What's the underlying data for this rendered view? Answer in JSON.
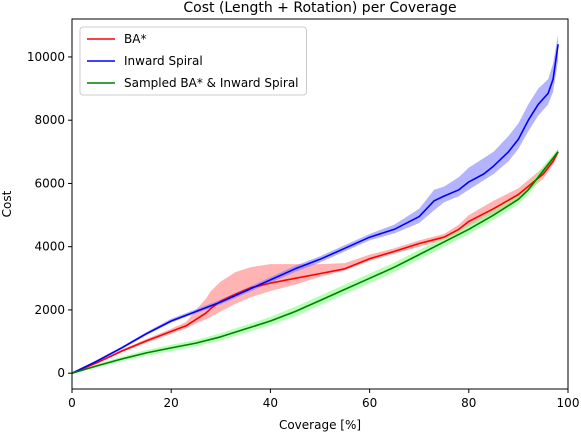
{
  "chart_data": {
    "type": "line",
    "title": "Cost (Length + Rotation) per Coverage",
    "xlabel": "Coverage [%]",
    "ylabel": "Cost",
    "xlim": [
      0,
      100
    ],
    "ylim": [
      -500,
      11200
    ],
    "xticks": [
      0,
      20,
      40,
      60,
      80,
      100
    ],
    "yticks": [
      0,
      2000,
      4000,
      6000,
      8000,
      10000
    ],
    "grid": false,
    "legend_position": "top-left",
    "series": [
      {
        "name": "BA*",
        "color": "#ff0000",
        "band_color": "#ff8080",
        "points": [
          [
            0,
            0
          ],
          [
            5,
            330
          ],
          [
            10,
            700
          ],
          [
            15,
            1020
          ],
          [
            20,
            1320
          ],
          [
            23,
            1500
          ],
          [
            25,
            1700
          ],
          [
            27,
            1900
          ],
          [
            28,
            2050
          ],
          [
            30,
            2280
          ],
          [
            33,
            2500
          ],
          [
            36,
            2700
          ],
          [
            40,
            2850
          ],
          [
            45,
            3000
          ],
          [
            50,
            3150
          ],
          [
            55,
            3300
          ],
          [
            60,
            3620
          ],
          [
            65,
            3850
          ],
          [
            70,
            4100
          ],
          [
            75,
            4300
          ],
          [
            78,
            4550
          ],
          [
            80,
            4800
          ],
          [
            85,
            5200
          ],
          [
            90,
            5650
          ],
          [
            95,
            6300
          ],
          [
            97,
            6700
          ],
          [
            98,
            7000
          ]
        ],
        "band": [
          [
            0,
            0,
            0
          ],
          [
            5,
            300,
            360
          ],
          [
            10,
            660,
            740
          ],
          [
            15,
            960,
            1080
          ],
          [
            20,
            1250,
            1400
          ],
          [
            23,
            1420,
            1620
          ],
          [
            25,
            1580,
            2000
          ],
          [
            27,
            1700,
            2350
          ],
          [
            28,
            1780,
            2600
          ],
          [
            30,
            1950,
            2900
          ],
          [
            33,
            2200,
            3200
          ],
          [
            36,
            2400,
            3350
          ],
          [
            40,
            2600,
            3450
          ],
          [
            45,
            2800,
            3450
          ],
          [
            50,
            3050,
            3450
          ],
          [
            55,
            3250,
            3480
          ],
          [
            60,
            3550,
            3750
          ],
          [
            65,
            3780,
            3950
          ],
          [
            70,
            4000,
            4200
          ],
          [
            75,
            4220,
            4400
          ],
          [
            78,
            4450,
            4700
          ],
          [
            80,
            4650,
            5000
          ],
          [
            85,
            5050,
            5450
          ],
          [
            90,
            5500,
            5850
          ],
          [
            95,
            6150,
            6500
          ],
          [
            97,
            6600,
            6850
          ],
          [
            98,
            6900,
            7100
          ]
        ]
      },
      {
        "name": "Inward Spiral",
        "color": "#0000ff",
        "band_color": "#8080ff",
        "points": [
          [
            0,
            0
          ],
          [
            5,
            380
          ],
          [
            10,
            800
          ],
          [
            15,
            1250
          ],
          [
            20,
            1650
          ],
          [
            25,
            1950
          ],
          [
            30,
            2250
          ],
          [
            35,
            2600
          ],
          [
            40,
            2950
          ],
          [
            45,
            3300
          ],
          [
            50,
            3600
          ],
          [
            55,
            3950
          ],
          [
            60,
            4300
          ],
          [
            65,
            4550
          ],
          [
            70,
            4950
          ],
          [
            73,
            5450
          ],
          [
            75,
            5600
          ],
          [
            78,
            5800
          ],
          [
            80,
            6050
          ],
          [
            83,
            6300
          ],
          [
            85,
            6550
          ],
          [
            88,
            7000
          ],
          [
            90,
            7400
          ],
          [
            92,
            8000
          ],
          [
            94,
            8500
          ],
          [
            96,
            8850
          ],
          [
            97,
            9300
          ],
          [
            98,
            10400
          ]
        ],
        "band": [
          [
            0,
            0,
            0
          ],
          [
            5,
            350,
            420
          ],
          [
            10,
            760,
            840
          ],
          [
            15,
            1200,
            1300
          ],
          [
            20,
            1600,
            1720
          ],
          [
            25,
            1900,
            2020
          ],
          [
            30,
            2180,
            2330
          ],
          [
            35,
            2520,
            2680
          ],
          [
            40,
            2860,
            3040
          ],
          [
            45,
            3200,
            3400
          ],
          [
            50,
            3500,
            3700
          ],
          [
            55,
            3850,
            4050
          ],
          [
            60,
            4200,
            4400
          ],
          [
            65,
            4420,
            4700
          ],
          [
            70,
            4750,
            5200
          ],
          [
            73,
            5150,
            5800
          ],
          [
            75,
            5400,
            5900
          ],
          [
            78,
            5600,
            6200
          ],
          [
            80,
            5800,
            6500
          ],
          [
            83,
            6100,
            6800
          ],
          [
            85,
            6300,
            7000
          ],
          [
            88,
            6700,
            7500
          ],
          [
            90,
            7100,
            7900
          ],
          [
            92,
            7650,
            8500
          ],
          [
            94,
            8150,
            9000
          ],
          [
            96,
            8500,
            9300
          ],
          [
            97,
            8900,
            9800
          ],
          [
            98,
            9900,
            10700
          ]
        ]
      },
      {
        "name": "Sampled BA* & Inward Spiral",
        "color": "#008000",
        "band_color": "#80ff80",
        "points": [
          [
            0,
            0
          ],
          [
            5,
            230
          ],
          [
            10,
            450
          ],
          [
            15,
            640
          ],
          [
            20,
            800
          ],
          [
            25,
            950
          ],
          [
            30,
            1150
          ],
          [
            35,
            1400
          ],
          [
            40,
            1650
          ],
          [
            45,
            1950
          ],
          [
            50,
            2300
          ],
          [
            55,
            2650
          ],
          [
            60,
            3000
          ],
          [
            65,
            3350
          ],
          [
            70,
            3750
          ],
          [
            75,
            4150
          ],
          [
            80,
            4550
          ],
          [
            85,
            5000
          ],
          [
            90,
            5500
          ],
          [
            92,
            5800
          ],
          [
            95,
            6400
          ],
          [
            98,
            7000
          ]
        ],
        "band": [
          [
            0,
            0,
            0
          ],
          [
            5,
            180,
            280
          ],
          [
            10,
            380,
            520
          ],
          [
            15,
            550,
            730
          ],
          [
            20,
            700,
            900
          ],
          [
            25,
            850,
            1050
          ],
          [
            30,
            1040,
            1260
          ],
          [
            35,
            1280,
            1520
          ],
          [
            40,
            1520,
            1780
          ],
          [
            45,
            1800,
            2100
          ],
          [
            50,
            2150,
            2450
          ],
          [
            55,
            2500,
            2800
          ],
          [
            60,
            2850,
            3150
          ],
          [
            65,
            3200,
            3500
          ],
          [
            70,
            3600,
            3900
          ],
          [
            75,
            4000,
            4300
          ],
          [
            80,
            4400,
            4700
          ],
          [
            85,
            4850,
            5150
          ],
          [
            90,
            5350,
            5650
          ],
          [
            92,
            5650,
            5950
          ],
          [
            95,
            6250,
            6550
          ],
          [
            98,
            6900,
            7100
          ]
        ]
      }
    ]
  }
}
